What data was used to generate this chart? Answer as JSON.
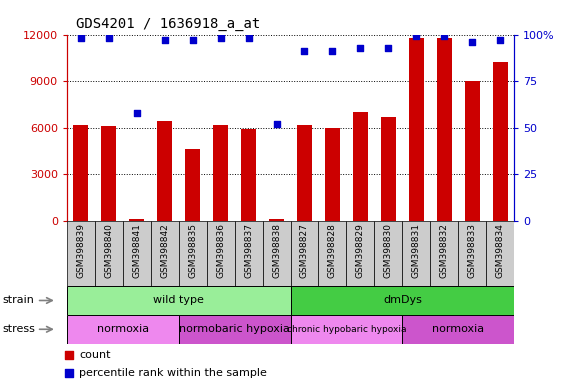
{
  "title": "GDS4201 / 1636918_a_at",
  "samples": [
    "GSM398839",
    "GSM398840",
    "GSM398841",
    "GSM398842",
    "GSM398835",
    "GSM398836",
    "GSM398837",
    "GSM398838",
    "GSM398827",
    "GSM398828",
    "GSM398829",
    "GSM398830",
    "GSM398831",
    "GSM398832",
    "GSM398833",
    "GSM398834"
  ],
  "counts": [
    6200,
    6100,
    100,
    6400,
    4600,
    6200,
    5900,
    100,
    6200,
    6000,
    7000,
    6700,
    11800,
    11800,
    9000,
    10200
  ],
  "percentile": [
    98,
    98,
    58,
    97,
    97,
    98,
    98,
    52,
    91,
    91,
    93,
    93,
    99,
    99,
    96,
    97
  ],
  "bar_color": "#cc0000",
  "dot_color": "#0000cc",
  "left_axis_color": "#cc0000",
  "right_axis_color": "#0000cc",
  "ylim_left": [
    0,
    12000
  ],
  "ylim_right": [
    0,
    100
  ],
  "yticks_left": [
    0,
    3000,
    6000,
    9000,
    12000
  ],
  "ytick_labels_left": [
    "0",
    "3000",
    "6000",
    "9000",
    "12000"
  ],
  "yticks_right": [
    0,
    25,
    50,
    75,
    100
  ],
  "ytick_labels_right": [
    "0",
    "25",
    "50",
    "75",
    "100%"
  ],
  "strain_labels": [
    {
      "text": "wild type",
      "start": 0,
      "end": 7,
      "color": "#99ee99"
    },
    {
      "text": "dmDys",
      "start": 8,
      "end": 15,
      "color": "#44cc44"
    }
  ],
  "stress_labels": [
    {
      "text": "normoxia",
      "start": 0,
      "end": 3,
      "color": "#ee88ee"
    },
    {
      "text": "normobaric hypoxia",
      "start": 4,
      "end": 7,
      "color": "#cc55cc"
    },
    {
      "text": "chronic hypobaric hypoxia",
      "start": 8,
      "end": 11,
      "color": "#ee88ee"
    },
    {
      "text": "normoxia",
      "start": 12,
      "end": 15,
      "color": "#cc55cc"
    }
  ],
  "legend_count_color": "#cc0000",
  "legend_dot_color": "#0000cc",
  "background_color": "#ffffff",
  "bar_width": 0.55,
  "label_bg": "#cccccc"
}
